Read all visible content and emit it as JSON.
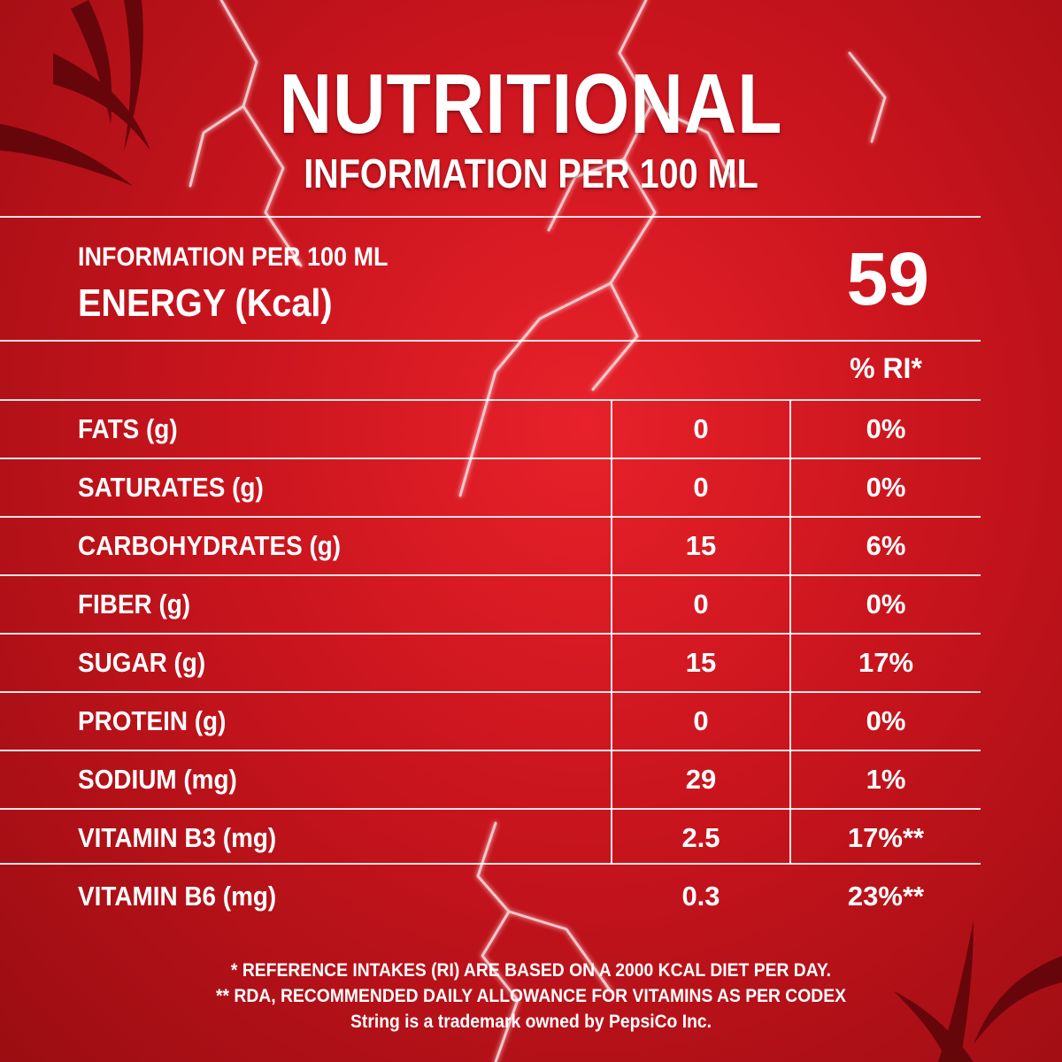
{
  "colors": {
    "background": "#d0161f",
    "text": "#ffffff",
    "rule": "#ffffff"
  },
  "header": {
    "title": "NUTRITIONAL",
    "subtitle": "INFORMATION PER 100 ML"
  },
  "energy": {
    "pre_label": "INFORMATION PER 100 ML",
    "label": "ENERGY (Kcal)",
    "value": "59"
  },
  "table": {
    "ri_header": "% RI*",
    "rows": [
      {
        "name": "FATS (g)",
        "amount": "0",
        "ri": "0%"
      },
      {
        "name": "SATURATES (g)",
        "amount": "0",
        "ri": "0%"
      },
      {
        "name": "CARBOHYDRATES (g)",
        "amount": "15",
        "ri": "6%"
      },
      {
        "name": "FIBER (g)",
        "amount": "0",
        "ri": "0%"
      },
      {
        "name": "SUGAR (g)",
        "amount": "15",
        "ri": "17%"
      },
      {
        "name": "PROTEIN (g)",
        "amount": "0",
        "ri": "0%"
      },
      {
        "name": "SODIUM (mg)",
        "amount": "29",
        "ri": "1%"
      },
      {
        "name": "VITAMIN B3 (mg)",
        "amount": "2.5",
        "ri": "17%**"
      },
      {
        "name": "VITAMIN B6 (mg)",
        "amount": "0.3",
        "ri": "23%**"
      }
    ]
  },
  "footnotes": {
    "line1": "* REFERENCE INTAKES (RI) ARE BASED ON A 2000 KCAL DIET PER DAY.",
    "line2": "** RDA, RECOMMENDED DAILY ALLOWANCE FOR VITAMINS AS PER CODEX",
    "line3": "String is a trademark owned by PepsiCo Inc."
  }
}
